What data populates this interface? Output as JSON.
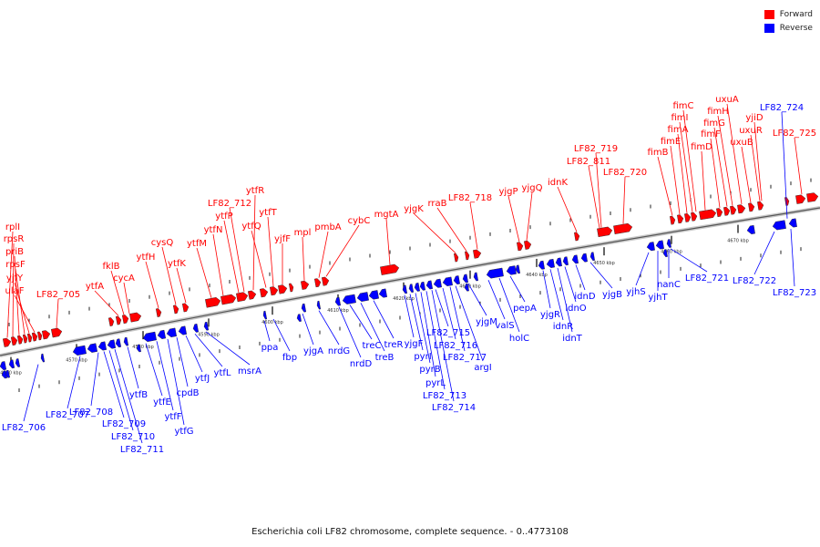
{
  "legend": {
    "forward_label": "Forward",
    "reverse_label": "Reverse",
    "forward_color": "#ff0000",
    "reverse_color": "#0000ff"
  },
  "caption": "Escherichia coli LF82 chromosome, complete sequence. - 0..4773108",
  "ticks": [
    "4560 kbp",
    "4570 kbp",
    "4580 kbp",
    "4590 kbp",
    "4600 kbp",
    "4610 kbp",
    "4620 kbp",
    "4630 kbp",
    "4640 kbp",
    "4650 kbp",
    "4660 kbp",
    "4670 kbp"
  ],
  "forward_labels": [
    "rplI",
    "rpsR",
    "priB",
    "rpsF",
    "yjfY",
    "ulaF",
    "LF82_705",
    "ytfA",
    "fklB",
    "cycA",
    "ytfH",
    "cysQ",
    "ytfK",
    "ytfM",
    "ytfN",
    "ytfP",
    "LF82_712",
    "ytfR",
    "ytfQ",
    "ytfT",
    "yjfF",
    "mpl",
    "pmbA",
    "cybC",
    "mgtA",
    "yjgK",
    "rraB",
    "LF82_718",
    "yjgP",
    "yjgQ",
    "idnK",
    "LF82_811",
    "LF82_719",
    "LF82_720",
    "fimB",
    "fimE",
    "fimA",
    "fimI",
    "fimC",
    "fimD",
    "fimF",
    "fimG",
    "fimH",
    "uxuA",
    "uxuB",
    "uxuR",
    "yjiD",
    "LF82_725"
  ],
  "reverse_labels": [
    "LF82_706",
    "LF82_707",
    "LF82_708",
    "LF82_709",
    "LF82_710",
    "LF82_711",
    "ytfB",
    "ytfE",
    "ytfF",
    "ytfG",
    "cpdB",
    "ytfJ",
    "ytfL",
    "msrA",
    "ppa",
    "fbp",
    "yjgA",
    "nrdG",
    "nrdD",
    "treC",
    "treB",
    "treR",
    "yjgF",
    "pyrI",
    "pyrB",
    "pyrL",
    "LF82_713",
    "LF82_714",
    "LF82_715",
    "LF82_716",
    "LF82_717",
    "argI",
    "yjgM",
    "valS",
    "holC",
    "pepA",
    "yjgR",
    "idnR",
    "idnT",
    "idnO",
    "idnD",
    "yjgB",
    "yjhS",
    "yjhT",
    "nanC",
    "LF82_721",
    "LF82_722",
    "LF82_723",
    "LF82_724"
  ]
}
